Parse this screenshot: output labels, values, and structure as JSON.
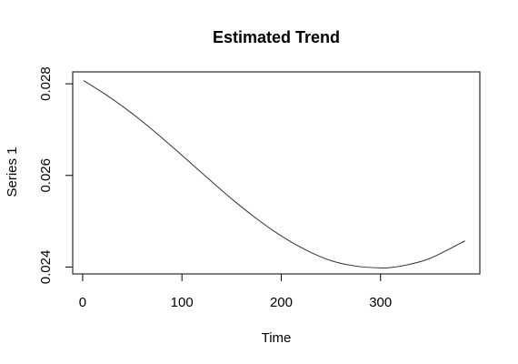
{
  "chart_data": {
    "type": "line",
    "title": "Estimated Trend",
    "xlabel": "Time",
    "ylabel": "Series 1",
    "xlim": [
      -10,
      400
    ],
    "ylim": [
      0.02385,
      0.02826
    ],
    "x_ticks": [
      0,
      100,
      200,
      300
    ],
    "x_tick_labels": [
      "0",
      "100",
      "200",
      "300"
    ],
    "y_ticks": [
      0.024,
      0.026,
      0.028
    ],
    "y_tick_labels": [
      "0.024",
      "0.026",
      "0.028"
    ],
    "grid": false,
    "series": [
      {
        "color": "#333333",
        "x": [
          1,
          25,
          50,
          75,
          100,
          125,
          150,
          175,
          200,
          225,
          250,
          275,
          300,
          310,
          325,
          350,
          385
        ],
        "y": [
          0.02807,
          0.02774,
          0.02735,
          0.02691,
          0.02644,
          0.02596,
          0.02549,
          0.02506,
          0.02468,
          0.02437,
          0.02414,
          0.02402,
          0.02398,
          0.02399,
          0.02404,
          0.02419,
          0.02457
        ]
      }
    ]
  }
}
